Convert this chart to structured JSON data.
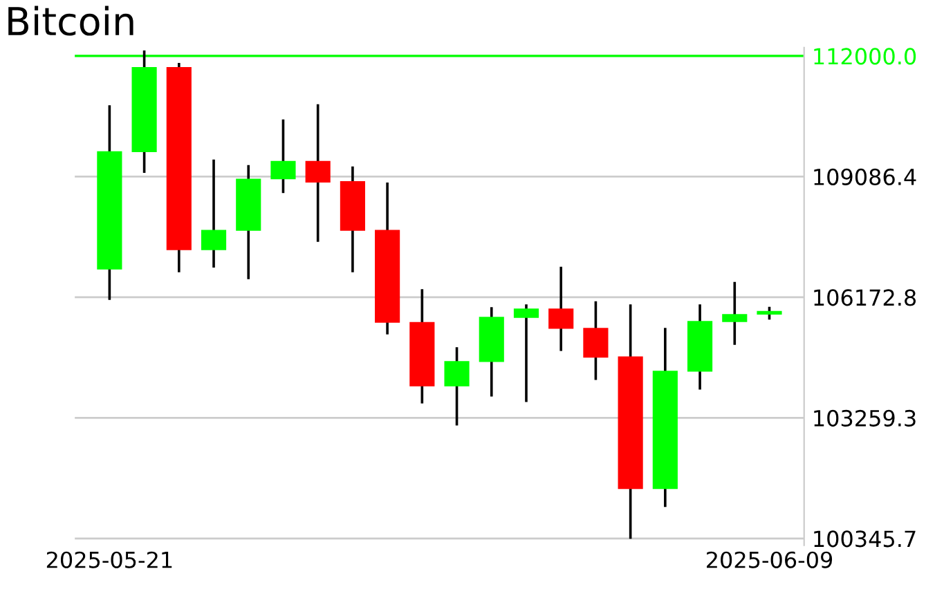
{
  "chart_data": {
    "type": "candlestick",
    "title": "Bitcoin",
    "x": [
      "2025-05-21",
      "2025-05-22",
      "2025-05-23",
      "2025-05-24",
      "2025-05-25",
      "2025-05-26",
      "2025-05-27",
      "2025-05-28",
      "2025-05-29",
      "2025-05-30",
      "2025-05-31",
      "2025-06-01",
      "2025-06-02",
      "2025-06-03",
      "2025-06-04",
      "2025-06-05",
      "2025-06-06",
      "2025-06-07",
      "2025-06-08",
      "2025-06-09"
    ],
    "ohlc": [
      [
        106842,
        110810,
        106109,
        109700
      ],
      [
        109676,
        112133,
        109176,
        111733
      ],
      [
        111733,
        111833,
        106776,
        107309
      ],
      [
        107309,
        109500,
        106889,
        107799
      ],
      [
        107776,
        109366,
        106609,
        109033
      ],
      [
        109023,
        110466,
        108689,
        109466
      ],
      [
        109466,
        110833,
        107509,
        108943
      ],
      [
        108976,
        109333,
        106776,
        107776
      ],
      [
        107799,
        108943,
        105275,
        105555
      ],
      [
        105575,
        106366,
        103608,
        104022
      ],
      [
        104022,
        104965,
        103075,
        104632
      ],
      [
        104609,
        105932,
        103775,
        105699
      ],
      [
        105675,
        106000,
        103642,
        105899
      ],
      [
        105899,
        106909,
        104875,
        105409
      ],
      [
        105432,
        106075,
        104175,
        104712
      ],
      [
        104742,
        106000,
        100340,
        101541
      ],
      [
        101541,
        105432,
        101108,
        104398
      ],
      [
        104375,
        106000,
        103942,
        105599
      ],
      [
        105575,
        106542,
        105022,
        105765
      ],
      [
        105755,
        105942,
        105632,
        105842
      ]
    ],
    "colors": [
      "#00ff00",
      "#00ff00",
      "#ff0000",
      "#00ff00",
      "#00ff00",
      "#00ff00",
      "#ff0000",
      "#ff0000",
      "#ff0000",
      "#ff0000",
      "#00ff00",
      "#00ff00",
      "#00ff00",
      "#ff0000",
      "#ff0000",
      "#ff0000",
      "#00ff00",
      "#00ff00",
      "#00ff00",
      "#00ff00"
    ],
    "xlim": [
      "2025-05-20",
      "2025-06-10"
    ],
    "xticks": [
      {
        "value": "2025-05-21",
        "label": "2025-05-21"
      },
      {
        "value": "2025-06-09",
        "label": "2025-06-09"
      }
    ],
    "ylim": [
      100180,
      112200
    ],
    "yticks": [
      {
        "value": 112000,
        "label": "112000.0"
      },
      {
        "value": 109086.4,
        "label": "109086.4"
      },
      {
        "value": 106172.8,
        "label": "106172.8"
      },
      {
        "value": 103259.3,
        "label": "103259.3"
      },
      {
        "value": 100345.7,
        "label": "100345.7"
      }
    ],
    "ref_lines": [
      {
        "axis": "y",
        "value": 112000,
        "color": "#00ff00"
      }
    ],
    "grid": "y"
  }
}
